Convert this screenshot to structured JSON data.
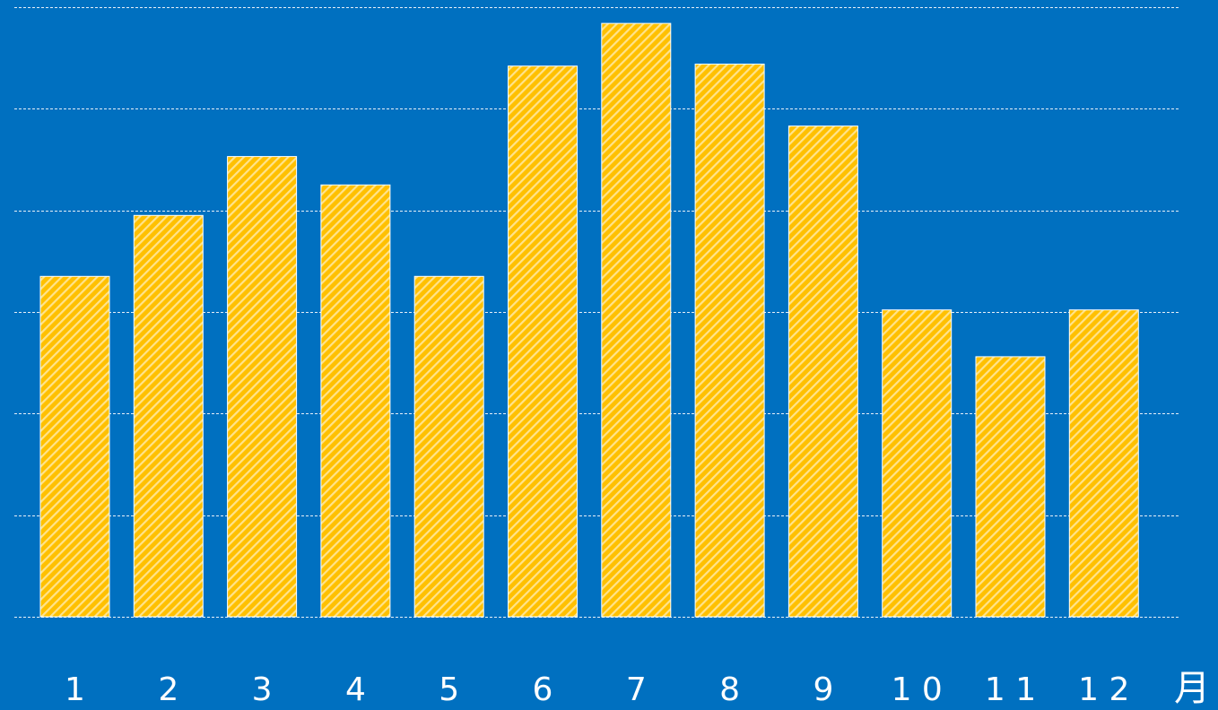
{
  "chart_data": {
    "type": "bar",
    "categories": [
      "1",
      "2",
      "3",
      "4",
      "5",
      "6",
      "7",
      "8",
      "9",
      "1 0",
      "1 1",
      "1 2"
    ],
    "values": [
      33.5,
      39.5,
      45.3,
      42.5,
      33.5,
      54.2,
      58.4,
      54.4,
      48.3,
      30.2,
      25.6,
      30.2
    ],
    "ylim": [
      0,
      60
    ],
    "y_gridlines": [
      0,
      10,
      20,
      30,
      40,
      50,
      60
    ],
    "x_unit_label": "月",
    "grid": true,
    "legend": "none",
    "colors": {
      "background": "#0070C0",
      "bar_fill": "#FFC000",
      "bar_stripe": "#FFFFFF",
      "gridline": "#FFFFFF",
      "text": "#FFFFFF"
    }
  }
}
